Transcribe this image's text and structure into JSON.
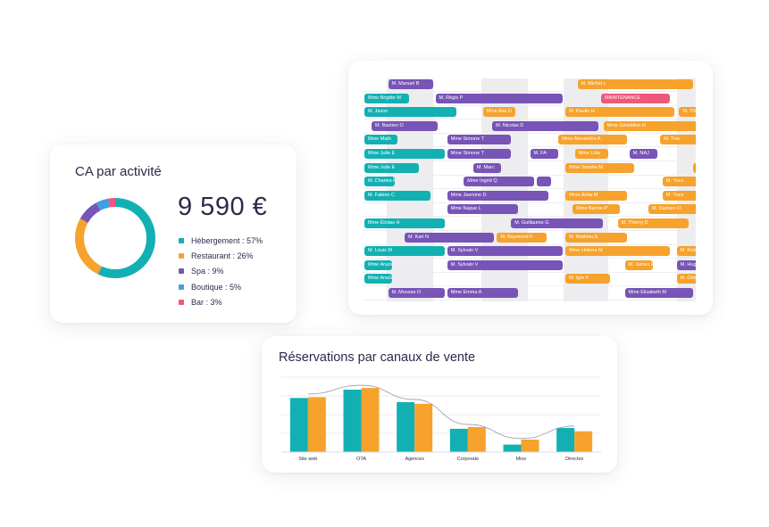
{
  "ca_card": {
    "title": "CA par activité",
    "total": "9 590 €",
    "segments": [
      {
        "label": "Hébergement : 57%",
        "pct": 57,
        "color": "#12b0b3"
      },
      {
        "label": "Restaurant : 26%",
        "pct": 26,
        "color": "#f6a22c"
      },
      {
        "label": "Spa : 9%",
        "pct": 9,
        "color": "#7754b6"
      },
      {
        "label": "Boutique : 5%",
        "pct": 5,
        "color": "#3fa0e0"
      },
      {
        "label": "Bar : 3%",
        "pct": 3,
        "color": "#f0577b"
      }
    ]
  },
  "planning": {
    "colors": {
      "teal": "#12b0b3",
      "orange": "#f6a22c",
      "purple": "#7754b6",
      "pink": "#f0577b"
    },
    "rows": [
      [
        {
          "label": "M. Manuel B",
          "c": "purple",
          "s": 1,
          "e": 3
        },
        {
          "label": "M. Michel L",
          "c": "orange",
          "s": 9,
          "e": 14
        }
      ],
      [
        {
          "label": "Mme Brigitte M",
          "c": "teal",
          "s": 0,
          "e": 2
        },
        {
          "label": "M. Régis P",
          "c": "purple",
          "s": 3,
          "e": 8.5
        },
        {
          "label": "MAINTENANCE",
          "c": "pink",
          "s": 10,
          "e": 13
        }
      ],
      [
        {
          "label": "M. Jason",
          "c": "teal",
          "s": 0,
          "e": 4
        },
        {
          "label": "Mme Ava D",
          "c": "orange",
          "s": 5,
          "e": 6.5
        },
        {
          "label": "M. Paulin H",
          "c": "orange",
          "s": 8.5,
          "e": 13.2
        },
        {
          "label": "M. Thie",
          "c": "orange",
          "s": 13.3,
          "e": 14.2
        }
      ],
      [
        {
          "label": "M. Bastien O",
          "c": "purple",
          "s": 0.3,
          "e": 3.2
        },
        {
          "label": "M. Nicolas D",
          "c": "purple",
          "s": 5.4,
          "e": 10
        },
        {
          "label": "Mme Géraldine H",
          "c": "orange",
          "s": 10.1,
          "e": 14.2
        }
      ],
      [
        {
          "label": "Mme Math",
          "c": "teal",
          "s": 0,
          "e": 1.5
        },
        {
          "label": "Mme Simone T",
          "c": "purple",
          "s": 3.5,
          "e": 6.3
        },
        {
          "label": "Mme Alexandra A",
          "c": "orange",
          "s": 8.2,
          "e": 11.2
        },
        {
          "label": "M. Thie",
          "c": "orange",
          "s": 12.5,
          "e": 14.2
        }
      ],
      [
        {
          "label": "Mme Julie E",
          "c": "teal",
          "s": 0,
          "e": 3.5
        },
        {
          "label": "Mme Simone T",
          "c": "purple",
          "s": 3.5,
          "e": 6.3
        },
        {
          "label": "M. FA",
          "c": "purple",
          "s": 7,
          "e": 8.3
        },
        {
          "label": "Mme Lola",
          "c": "orange",
          "s": 8.9,
          "e": 10.4
        },
        {
          "label": "M. NAJ",
          "c": "purple",
          "s": 11.2,
          "e": 12.5
        }
      ],
      [
        {
          "label": "Mme Julie E",
          "c": "teal",
          "s": 0,
          "e": 2.4
        },
        {
          "label": "M. Marc",
          "c": "purple",
          "s": 4.6,
          "e": 5.9
        },
        {
          "label": "Mme Sandra M",
          "c": "orange",
          "s": 8.5,
          "e": 11.5
        },
        {
          "label": "M",
          "c": "orange",
          "s": 13.9,
          "e": 14.2
        }
      ],
      [
        {
          "label": "M. Charles K",
          "c": "teal",
          "s": 0,
          "e": 1.4
        },
        {
          "label": "Mme Ingrid Q",
          "c": "purple",
          "s": 4.2,
          "e": 7.3
        },
        {
          "label": "",
          "c": "purple",
          "s": 7.3,
          "e": 8
        },
        {
          "label": "M. Yves",
          "c": "orange",
          "s": 12.6,
          "e": 14.2
        }
      ],
      [
        {
          "label": "M. Fabien C",
          "c": "teal",
          "s": 0,
          "e": 2.9
        },
        {
          "label": "Mme Jasmine D",
          "c": "purple",
          "s": 3.5,
          "e": 7.9
        },
        {
          "label": "Mme Anita M",
          "c": "orange",
          "s": 8.5,
          "e": 11.2
        },
        {
          "label": "M. Yves",
          "c": "orange",
          "s": 12.6,
          "e": 14.2
        }
      ],
      [
        {
          "label": "Mme Najsar L",
          "c": "purple",
          "s": 3.5,
          "e": 6.6
        },
        {
          "label": "Mme Barnie P",
          "c": "orange",
          "s": 8.8,
          "e": 10.9
        },
        {
          "label": "M. Damien O",
          "c": "orange",
          "s": 12,
          "e": 14.2
        }
      ],
      [
        {
          "label": "Mme Élcitas H",
          "c": "teal",
          "s": 0,
          "e": 3.5
        },
        {
          "label": "M. Guillaume G",
          "c": "purple",
          "s": 6.2,
          "e": 10.2
        },
        {
          "label": "M. Thierry D",
          "c": "orange",
          "s": 10.7,
          "e": 13.8
        }
      ],
      [
        {
          "label": "M. Karl N",
          "c": "purple",
          "s": 1.7,
          "e": 5.6
        },
        {
          "label": "M. Raymond F",
          "c": "orange",
          "s": 5.6,
          "e": 7.8
        },
        {
          "label": "M. Mathieu E",
          "c": "orange",
          "s": 8.5,
          "e": 11.2
        }
      ],
      [
        {
          "label": "M. Louis M",
          "c": "teal",
          "s": 0,
          "e": 3.5
        },
        {
          "label": "M. Sylvain V",
          "c": "purple",
          "s": 3.5,
          "e": 8.5
        },
        {
          "label": "Mme Helena M",
          "c": "orange",
          "s": 8.5,
          "e": 13
        },
        {
          "label": "M. Robe",
          "c": "orange",
          "s": 13.2,
          "e": 14.2
        }
      ],
      [
        {
          "label": "Mme Anaïs C",
          "c": "teal",
          "s": 0,
          "e": 1.3
        },
        {
          "label": "M. Sylvain V",
          "c": "purple",
          "s": 3.5,
          "e": 8.5
        },
        {
          "label": "M. James F",
          "c": "orange",
          "s": 11,
          "e": 12.3
        },
        {
          "label": "M. Hugu",
          "c": "purple",
          "s": 13.2,
          "e": 14.2
        }
      ],
      [
        {
          "label": "Mme Anaïs C",
          "c": "teal",
          "s": 0,
          "e": 1.3
        },
        {
          "label": "M. Igor F",
          "c": "orange",
          "s": 8.5,
          "e": 10.5
        },
        {
          "label": "M. Chri",
          "c": "orange",
          "s": 13.2,
          "e": 14.2
        }
      ],
      [
        {
          "label": "M. Mousse O",
          "c": "purple",
          "s": 1,
          "e": 3.5
        },
        {
          "label": "Mme Emma A",
          "c": "purple",
          "s": 3.5,
          "e": 6.6
        },
        {
          "label": "Mme Elisabeth M",
          "c": "purple",
          "s": 11,
          "e": 14
        }
      ]
    ]
  },
  "reservations": {
    "title": "Réservations par canaux de vente"
  },
  "chart_data": {
    "type": "bar",
    "title": "Réservations par canaux de vente",
    "categories": [
      "Site web",
      "OTA",
      "Agences",
      "Corporate",
      "Mice",
      "Directes"
    ],
    "series": [
      {
        "color": "#12b0b3",
        "values": [
          65,
          75,
          60,
          28,
          9,
          29
        ]
      },
      {
        "color": "#f6a22c",
        "values": [
          66,
          77,
          58,
          30,
          15,
          25
        ]
      }
    ],
    "trend_line": true,
    "ylim": [
      0,
      90
    ],
    "grid": true
  }
}
